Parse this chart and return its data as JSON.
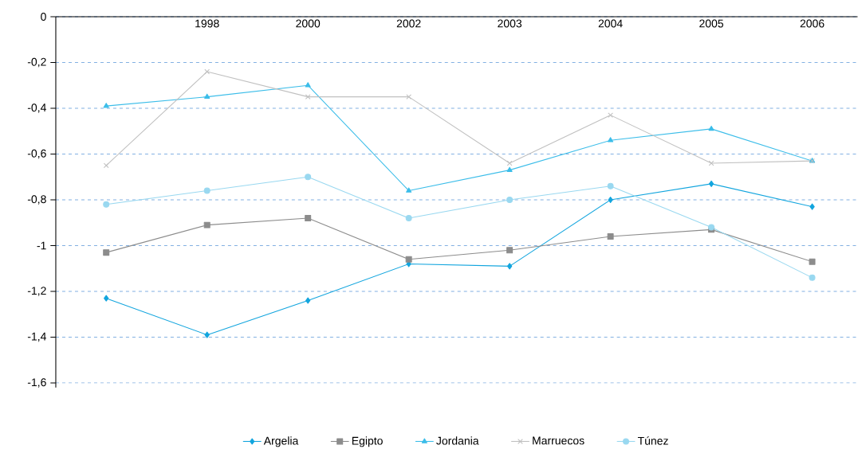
{
  "chart_data": {
    "type": "line",
    "categories": [
      null,
      "1998",
      "2000",
      "2002",
      "2003",
      "2004",
      "2005",
      "2006"
    ],
    "ylim": [
      -1.62,
      0
    ],
    "yticks": [
      0,
      {
        "value": -0.2,
        "label": "-0,2"
      },
      {
        "value": -0.4,
        "label": "-0,4"
      },
      {
        "value": -0.6,
        "label": "-0,6"
      },
      {
        "value": -0.8,
        "label": "-0,8"
      },
      {
        "value": -1,
        "label": "-1"
      },
      {
        "value": -1.2,
        "label": "-1,2"
      },
      {
        "value": -1.4,
        "label": "-1,4"
      },
      {
        "value": -1.6,
        "label": "-1,6"
      }
    ],
    "grid": "y",
    "legend": "bottom",
    "line_style": "solid",
    "series": [
      {
        "name": "Argelia",
        "color": "#12a5de",
        "marker": "diamond",
        "values": [
          -1.23,
          -1.39,
          -1.24,
          -1.08,
          -1.09,
          -0.8,
          -0.73,
          -0.83
        ]
      },
      {
        "name": "Egipto",
        "color": "#8c8c8c",
        "marker": "square",
        "values": [
          -1.03,
          -0.91,
          -0.88,
          -1.06,
          -1.02,
          -0.96,
          -0.93,
          -1.07
        ]
      },
      {
        "name": "Jordania",
        "color": "#3bbde9",
        "marker": "triangle",
        "values": [
          -0.39,
          -0.35,
          -0.3,
          -0.76,
          -0.67,
          -0.54,
          -0.49,
          -0.63
        ]
      },
      {
        "name": "Marruecos",
        "color": "#c0c0c0",
        "marker": "cross",
        "values": [
          -0.65,
          -0.24,
          -0.35,
          -0.35,
          -0.64,
          -0.43,
          -0.64,
          -0.63
        ]
      },
      {
        "name": "Túnez",
        "color": "#99d8f0",
        "marker": "circle",
        "values": [
          -0.82,
          -0.76,
          -0.7,
          -0.88,
          -0.8,
          -0.74,
          -0.92,
          -1.14
        ]
      }
    ]
  }
}
